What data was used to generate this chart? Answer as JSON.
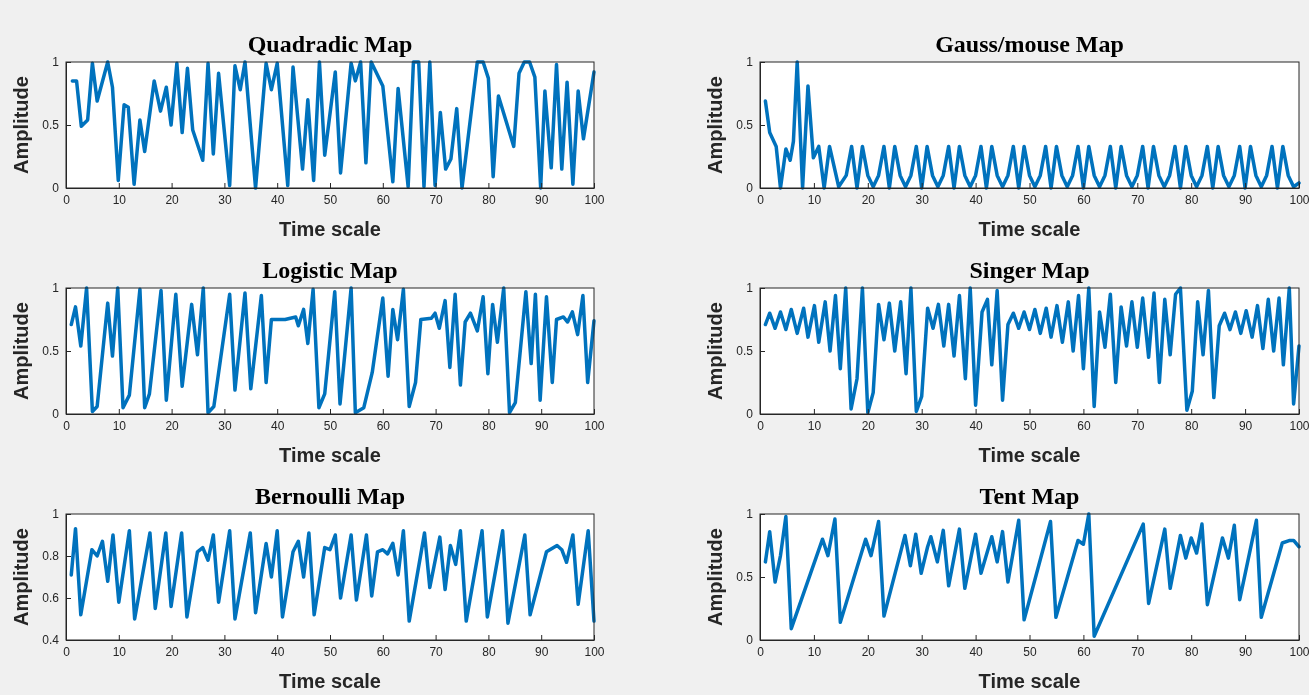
{
  "chart_data": [
    {
      "type": "line",
      "title": "Quadradic Map",
      "xlabel": "Time scale",
      "ylabel": "Amplitude",
      "xlim": [
        0,
        100
      ],
      "ylim": [
        0,
        1
      ],
      "xticks": [
        0,
        10,
        20,
        30,
        40,
        50,
        60,
        70,
        80,
        90,
        100
      ],
      "yticks": [
        0,
        0.5,
        1
      ],
      "series": [
        {
          "color": "#0072bd",
          "x": [
            1.2,
            2,
            2.9,
            4.1,
            5,
            5.9,
            7.9,
            8.8,
            9.9,
            11,
            11.8,
            12.9,
            14,
            14.9,
            16.7,
            17.9,
            19,
            19.9,
            21,
            22,
            23,
            24,
            25.9,
            26.9,
            27.9,
            28.9,
            31,
            32,
            33,
            33.9,
            35.9,
            37.9,
            38.9,
            40,
            42,
            43,
            44.8,
            45.8,
            46.9,
            48,
            49,
            51,
            52,
            54,
            54.8,
            55.8,
            56.8,
            57.8,
            60,
            61.9,
            62.9,
            64.8,
            65.8,
            66.8,
            67.8,
            68.9,
            69.9,
            70.9,
            71.9,
            72.9,
            74,
            75,
            77.9,
            79,
            80,
            80.9,
            81.9,
            84.8,
            85.8,
            86.8,
            87.8,
            88.8,
            89.9,
            90.7,
            91.9,
            92.9,
            93.9,
            94.9,
            96,
            97,
            98,
            100
          ],
          "values": [
            0.85,
            0.85,
            0.49,
            0.54,
            0.99,
            0.69,
            1,
            0.8,
            0.06,
            0.66,
            0.64,
            0.03,
            0.54,
            0.29,
            0.85,
            0.61,
            0.8,
            0.5,
            0.99,
            0.44,
            0.95,
            0.46,
            0.22,
            0.99,
            0.27,
            0.91,
            0.02,
            0.97,
            0.78,
            1,
            0,
            0.99,
            0.78,
            0.99,
            0.02,
            0.96,
            0.15,
            0.7,
            0.06,
            1,
            0.26,
            0.92,
            0.12,
            0.99,
            0.85,
            1,
            0.2,
            1,
            0.81,
            0.05,
            0.79,
            0.01,
            1,
            1,
            0.01,
            1,
            0.02,
            0.6,
            0.15,
            0.23,
            0.63,
            0,
            1,
            1,
            0.87,
            0.09,
            0.73,
            0.33,
            0.91,
            1,
            1,
            0.88,
            0,
            0.77,
            0.16,
            0.98,
            0.15,
            0.84,
            0.03,
            0.77,
            0.39,
            0.92
          ]
        }
      ]
    },
    {
      "type": "line",
      "title": "Gauss/mouse Map",
      "xlabel": "Time scale",
      "ylabel": "Amplitude",
      "xlim": [
        0,
        100
      ],
      "ylim": [
        0,
        1
      ],
      "xticks": [
        0,
        10,
        20,
        30,
        40,
        50,
        60,
        70,
        80,
        90,
        100
      ],
      "yticks": [
        0,
        0.5,
        1
      ],
      "series": [
        {
          "color": "#0072bd",
          "x": [
            1,
            1.8,
            3,
            3.8,
            4.8,
            5.6,
            6.2,
            6.9,
            7.9,
            8.9,
            9.9,
            10.9,
            11.9,
            12.9,
            14.6,
            16,
            17,
            18,
            19,
            20,
            21,
            22,
            23,
            24,
            25,
            26,
            27,
            28,
            29,
            30,
            31,
            32,
            33,
            34,
            35,
            36,
            37,
            38,
            39,
            40,
            41,
            42,
            43,
            44,
            45,
            46,
            47,
            48,
            49,
            50,
            51,
            52,
            53,
            54,
            55,
            56,
            57,
            58,
            59,
            60,
            61,
            62,
            63,
            64,
            65,
            66,
            67,
            68,
            69,
            70,
            71,
            72,
            73,
            74,
            75,
            76,
            77,
            78,
            79,
            80,
            81,
            82,
            83,
            84,
            85,
            86,
            87,
            88,
            89,
            90,
            91,
            92,
            93,
            94,
            95,
            96,
            97,
            98,
            99,
            100
          ],
          "values": [
            0.69,
            0.44,
            0.33,
            0,
            0.31,
            0.22,
            0.37,
            1,
            0,
            0.81,
            0.24,
            0.33,
            0,
            0.33,
            0.01,
            0.1,
            0.33,
            0,
            0.33,
            0.1,
            0.01,
            0.1,
            0.33,
            0,
            0.33,
            0.1,
            0.01,
            0.1,
            0.33,
            0,
            0.33,
            0.1,
            0.01,
            0.1,
            0.33,
            0,
            0.33,
            0.1,
            0.01,
            0.1,
            0.33,
            0,
            0.33,
            0.1,
            0.01,
            0.1,
            0.33,
            0,
            0.33,
            0.1,
            0.01,
            0.1,
            0.33,
            0,
            0.33,
            0.1,
            0.01,
            0.1,
            0.33,
            0,
            0.33,
            0.1,
            0.01,
            0.1,
            0.33,
            0,
            0.33,
            0.1,
            0.01,
            0.1,
            0.33,
            0,
            0.33,
            0.1,
            0.01,
            0.1,
            0.33,
            0,
            0.33,
            0.1,
            0.01,
            0.1,
            0.33,
            0,
            0.33,
            0.1,
            0.01,
            0.1,
            0.33,
            0,
            0.33,
            0.1,
            0.01,
            0.1,
            0.33,
            0,
            0.33,
            0.1,
            0.01,
            0.04
          ]
        }
      ]
    },
    {
      "type": "line",
      "title": "Logistic Map",
      "xlabel": "Time scale",
      "ylabel": "Amplitude",
      "xlim": [
        0,
        100
      ],
      "ylim": [
        0,
        1
      ],
      "xticks": [
        0,
        10,
        20,
        30,
        40,
        50,
        60,
        70,
        80,
        90,
        100
      ],
      "yticks": [
        0,
        0.5,
        1
      ],
      "series": [
        {
          "color": "#0072bd",
          "x": [
            1,
            1.8,
            2.8,
            3.9,
            5,
            5.9,
            7.9,
            8.8,
            9.8,
            10.8,
            12,
            14,
            14.9,
            15.8,
            18,
            19,
            20.8,
            22,
            23.8,
            24.9,
            26,
            26.9,
            28,
            31,
            32,
            33.9,
            35,
            37,
            37.9,
            38.9,
            41.5,
            43.5,
            44,
            45,
            45.8,
            46.8,
            47.9,
            49,
            50.9,
            51.9,
            54,
            54.8,
            56.4,
            58,
            60,
            61,
            61.9,
            62.8,
            63.9,
            65,
            66.2,
            67.2,
            69.2,
            69.9,
            70.7,
            71.8,
            72.7,
            73.7,
            74.7,
            75.6,
            76.6,
            77.9,
            79,
            79.9,
            80.8,
            81.7,
            82.9,
            84,
            85.1,
            87.1,
            88.1,
            88.9,
            89.8,
            91,
            92.1,
            92.9,
            94.2,
            95,
            95.9,
            96.9,
            97.9,
            98.8,
            100
          ],
          "values": [
            0.71,
            0.85,
            0.54,
            1,
            0.02,
            0.06,
            0.88,
            0.46,
            1,
            0.05,
            0.15,
            0.99,
            0.05,
            0.16,
            0.98,
            0.11,
            0.95,
            0.22,
            0.87,
            0.47,
            1,
            0.01,
            0.06,
            0.95,
            0.19,
            0.96,
            0.2,
            0.94,
            0.25,
            0.75,
            0.75,
            0.77,
            0.7,
            0.83,
            0.56,
            0.99,
            0.05,
            0.16,
            0.97,
            0.08,
            1,
            0.01,
            0.05,
            0.33,
            0.92,
            0.3,
            0.83,
            0.59,
            0.99,
            0.06,
            0.25,
            0.75,
            0.76,
            0.8,
            0.68,
            0.9,
            0.37,
            0.95,
            0.23,
            0.73,
            0.8,
            0.66,
            0.93,
            0.32,
            0.87,
            0.57,
            1,
            0.01,
            0.09,
            0.97,
            0.4,
            0.95,
            0.11,
            0.93,
            0.25,
            0.75,
            0.77,
            0.73,
            0.81,
            0.63,
            0.94,
            0.25,
            0.74
          ]
        }
      ]
    },
    {
      "type": "line",
      "title": "Singer Map",
      "xlabel": "Time scale",
      "ylabel": "Amplitude",
      "xlim": [
        0,
        100
      ],
      "ylim": [
        0,
        1
      ],
      "xticks": [
        0,
        10,
        20,
        30,
        40,
        50,
        60,
        70,
        80,
        90,
        100
      ],
      "yticks": [
        0,
        0.5,
        1
      ],
      "series": [
        {
          "color": "#0072bd",
          "x": [
            1,
            1.8,
            2.8,
            3.8,
            4.8,
            5.8,
            6.9,
            8.1,
            8.9,
            10.1,
            10.9,
            12.1,
            13,
            14,
            14.9,
            15.9,
            16.9,
            18,
            19,
            20,
            21,
            22,
            23,
            24,
            25,
            26.1,
            27.1,
            28,
            29,
            30,
            31.1,
            32.1,
            33.1,
            34.1,
            35,
            36,
            37,
            38.1,
            39,
            40,
            41.2,
            42.2,
            43,
            44,
            45,
            46,
            47,
            48,
            49,
            50,
            51,
            52,
            53.1,
            54,
            55.1,
            56.1,
            57.2,
            58.1,
            59.1,
            60,
            61,
            62,
            63,
            64,
            65,
            66,
            67,
            68,
            69,
            70,
            71,
            72.1,
            73.1,
            74.1,
            75.1,
            76.1,
            77.1,
            78,
            79.2,
            80.2,
            81.2,
            82.2,
            83.2,
            84.2,
            85.2,
            86.2,
            87.2,
            88.2,
            89.2,
            90.2,
            91.3,
            92.3,
            93.3,
            94.3,
            95.3,
            96.3,
            97.1,
            98.2,
            99,
            100
          ],
          "values": [
            0.71,
            0.8,
            0.68,
            0.81,
            0.67,
            0.83,
            0.64,
            0.84,
            0.61,
            0.86,
            0.57,
            0.89,
            0.5,
            0.94,
            0.36,
            1,
            0.04,
            0.28,
            1,
            0.01,
            0.17,
            0.87,
            0.59,
            0.88,
            0.5,
            0.89,
            0.32,
            1,
            0.02,
            0.14,
            0.84,
            0.68,
            0.87,
            0.54,
            0.87,
            0.46,
            0.94,
            0.28,
            1,
            0.07,
            0.81,
            0.91,
            0.39,
            0.98,
            0.11,
            0.71,
            0.8,
            0.68,
            0.81,
            0.67,
            0.83,
            0.64,
            0.84,
            0.61,
            0.86,
            0.57,
            0.89,
            0.5,
            0.94,
            0.36,
            1,
            0.06,
            0.81,
            0.53,
            0.95,
            0.25,
            0.85,
            0.54,
            0.89,
            0.53,
            0.92,
            0.45,
            0.96,
            0.25,
            0.91,
            0.47,
            0.95,
            1,
            0.03,
            0.18,
            0.89,
            0.47,
            0.98,
            0.13,
            0.7,
            0.8,
            0.67,
            0.81,
            0.64,
            0.82,
            0.61,
            0.86,
            0.52,
            0.91,
            0.5,
            0.92,
            0.39,
            1,
            0.08,
            0.54
          ]
        }
      ]
    },
    {
      "type": "line",
      "title": "Bernoulli Map",
      "xlabel": "Time scale",
      "ylabel": "Amplitude",
      "xlim": [
        0,
        100
      ],
      "ylim": [
        0.4,
        1
      ],
      "xticks": [
        0,
        10,
        20,
        30,
        40,
        50,
        60,
        70,
        80,
        90,
        100
      ],
      "yticks": [
        0.4,
        0.6,
        0.8,
        1
      ],
      "series": [
        {
          "color": "#0072bd",
          "x": [
            1,
            1.8,
            2.8,
            4.9,
            5.9,
            6.9,
            7.9,
            8.9,
            10,
            12,
            13,
            15.9,
            16.9,
            18.9,
            19.9,
            21.9,
            22.9,
            24.9,
            25.9,
            26.9,
            27.9,
            28.9,
            31,
            32,
            34.9,
            35.9,
            37.9,
            38.9,
            40,
            41,
            43,
            44,
            45,
            46,
            47,
            49,
            50,
            51,
            52,
            54,
            55,
            56.9,
            57.9,
            59,
            60,
            60.9,
            61.9,
            62.9,
            63.9,
            65,
            67.9,
            68.9,
            70.8,
            71.8,
            72.8,
            73.8,
            74.7,
            75.8,
            78.8,
            79.8,
            82.7,
            83.7,
            86.9,
            87.9,
            91,
            93,
            93.9,
            94.8,
            96,
            97,
            98.9,
            100
          ],
          "values": [
            0.71,
            0.93,
            0.52,
            0.83,
            0.8,
            0.87,
            0.68,
            0.9,
            0.58,
            0.92,
            0.5,
            0.91,
            0.55,
            0.91,
            0.56,
            0.91,
            0.51,
            0.82,
            0.84,
            0.78,
            0.9,
            0.58,
            0.92,
            0.5,
            0.91,
            0.53,
            0.86,
            0.7,
            0.92,
            0.51,
            0.82,
            0.87,
            0.7,
            0.91,
            0.52,
            0.84,
            0.83,
            0.9,
            0.6,
            0.9,
            0.59,
            0.9,
            0.61,
            0.82,
            0.83,
            0.81,
            0.86,
            0.71,
            0.92,
            0.49,
            0.91,
            0.65,
            0.89,
            0.64,
            0.85,
            0.76,
            0.92,
            0.49,
            0.92,
            0.51,
            0.92,
            0.48,
            0.9,
            0.52,
            0.82,
            0.85,
            0.83,
            0.77,
            0.9,
            0.57,
            0.92,
            0.49
          ]
        }
      ]
    },
    {
      "type": "line",
      "title": "Tent Map",
      "xlabel": "Time scale",
      "ylabel": "Amplitude",
      "xlim": [
        0,
        100
      ],
      "ylim": [
        0,
        1
      ],
      "xticks": [
        0,
        10,
        20,
        30,
        40,
        50,
        60,
        70,
        80,
        90,
        100
      ],
      "yticks": [
        0,
        0.5,
        1
      ],
      "series": [
        {
          "color": "#0072bd",
          "x": [
            1,
            1.8,
            2.8,
            3.8,
            4.8,
            5.8,
            11.6,
            12.6,
            13.9,
            14.9,
            19.6,
            20.6,
            22,
            23,
            26.9,
            27.9,
            28.9,
            29.9,
            31.1,
            31.7,
            32.9,
            34,
            35,
            37,
            38,
            40,
            41,
            43,
            44,
            45,
            46,
            48,
            49,
            53.9,
            54.9,
            59,
            60,
            61,
            62,
            71.1,
            72.1,
            75.1,
            76.1,
            78,
            79,
            80,
            81,
            82,
            83,
            85.8,
            86.9,
            88,
            89,
            92.1,
            93,
            96.9,
            98.3,
            99,
            100
          ],
          "values": [
            0.62,
            0.86,
            0.46,
            0.67,
            0.98,
            0.09,
            0.8,
            0.67,
            0.96,
            0.14,
            0.8,
            0.67,
            0.94,
            0.19,
            0.83,
            0.59,
            0.84,
            0.53,
            0.74,
            0.82,
            0.62,
            0.87,
            0.43,
            0.88,
            0.41,
            0.84,
            0.53,
            0.82,
            0.62,
            0.86,
            0.46,
            0.95,
            0.16,
            0.94,
            0.18,
            0.79,
            0.76,
            1,
            0.03,
            0.92,
            0.29,
            0.88,
            0.41,
            0.83,
            0.65,
            0.81,
            0.69,
            0.92,
            0.28,
            0.81,
            0.65,
            0.91,
            0.32,
            0.95,
            0.18,
            0.77,
            0.79,
            0.79,
            0.74
          ]
        }
      ]
    }
  ]
}
